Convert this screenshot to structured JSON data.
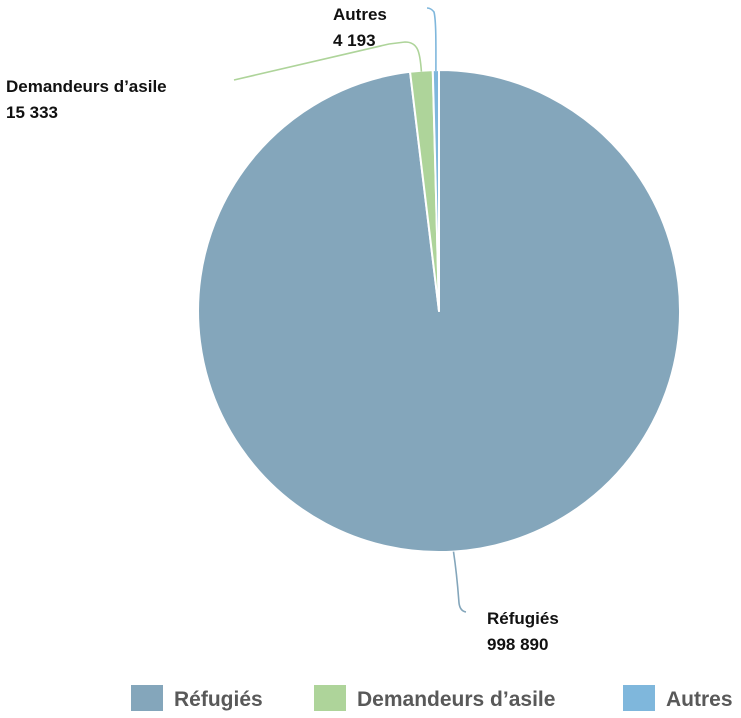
{
  "chart_data": {
    "type": "pie",
    "categories": [
      "Réfugiés",
      "Demandeurs d’asile",
      "Autres"
    ],
    "values": [
      998890,
      15333,
      4193
    ],
    "value_labels": [
      "998 890",
      "15 333",
      "4 193"
    ],
    "colors": [
      "#84a6bb",
      "#aed49a",
      "#7fb7dc"
    ],
    "title": "",
    "legend": "bottom-right"
  }
}
